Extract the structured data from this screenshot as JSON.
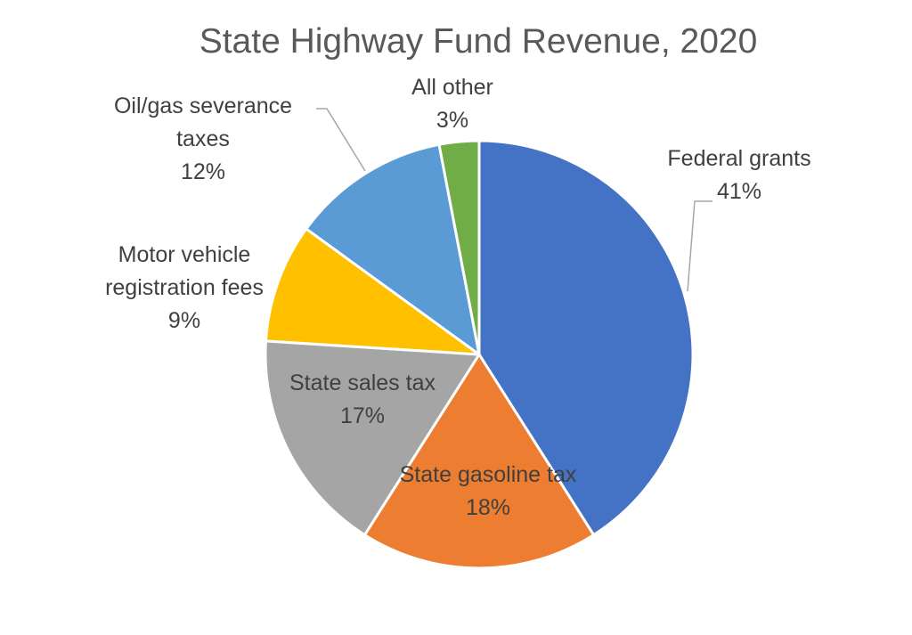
{
  "chart_data": {
    "type": "pie",
    "title": "State Highway Fund Revenue, 2020",
    "unit": "%",
    "slices": [
      {
        "name": "Federal grants",
        "label_lines": [
          "Federal grants"
        ],
        "value": 41,
        "value_label": "41%",
        "color": "#4472C4"
      },
      {
        "name": "State gasoline tax",
        "label_lines": [
          "State gasoline tax"
        ],
        "value": 18,
        "value_label": "18%",
        "color": "#ED7D31"
      },
      {
        "name": "State sales tax",
        "label_lines": [
          "State sales tax"
        ],
        "value": 17,
        "value_label": "17%",
        "color": "#A5A5A5"
      },
      {
        "name": "Motor vehicle registration fees",
        "label_lines": [
          "Motor vehicle",
          "registration fees"
        ],
        "value": 9,
        "value_label": "9%",
        "color": "#FFC000"
      },
      {
        "name": "Oil/gas severance taxes",
        "label_lines": [
          "Oil/gas severance",
          "taxes"
        ],
        "value": 12,
        "value_label": "12%",
        "color": "#5B9BD5"
      },
      {
        "name": "All other",
        "label_lines": [
          "All other"
        ],
        "value": 3,
        "value_label": "3%",
        "color": "#70AD47"
      }
    ],
    "start_angle_deg": 0,
    "direction": "clockwise",
    "legend": "none"
  }
}
